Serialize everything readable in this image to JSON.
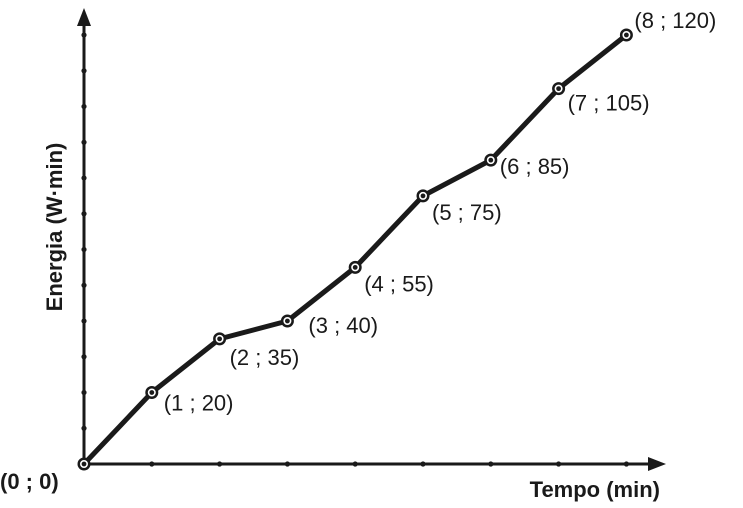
{
  "chart_data": {
    "type": "line",
    "xlabel": "Tempo (min)",
    "ylabel": "Energia (W·min)",
    "xlim": [
      0,
      8
    ],
    "ylim": [
      0,
      120
    ],
    "x_ticks": [
      1,
      2,
      3,
      4,
      5,
      6,
      7,
      8
    ],
    "y_ticks": [
      10,
      20,
      30,
      40,
      50,
      60,
      70,
      80,
      90,
      100,
      110,
      120
    ],
    "grid": false,
    "series": [
      {
        "x": [
          0,
          1,
          2,
          3,
          4,
          5,
          6,
          7,
          8
        ],
        "y": [
          0,
          20,
          35,
          40,
          55,
          75,
          85,
          105,
          120
        ],
        "point_labels": [
          "(0 ; 0)",
          "(1 ; 20)",
          "(2 ; 35)",
          "(3 ; 40)",
          "(4 ; 55)",
          "(5 ; 75)",
          "(6 ; 85)",
          "(7 ; 105)",
          "(8 ; 120)"
        ]
      }
    ]
  }
}
